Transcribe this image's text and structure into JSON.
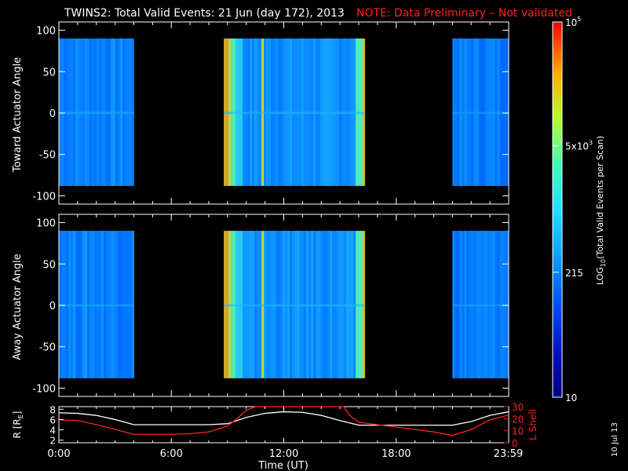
{
  "header": {
    "title": "TWINS2: Total Valid Events: 21 Jun (day 172), 2013",
    "note": "NOTE: Data Preliminary – Not validated"
  },
  "footer": {
    "date_stamp": "10 Jul 13"
  },
  "colors": {
    "background": "#000000",
    "note": "#ff2020",
    "foreground": "#ffffff",
    "lshell": "#ff2020",
    "radius": "#ffffff"
  },
  "chart_data": [
    {
      "type": "heatmap",
      "ylabel": "Toward Actuator Angle",
      "x_unit": "hours UT",
      "xlim": [
        0,
        24
      ],
      "ylim": [
        -110,
        110
      ],
      "yticks": [
        "100",
        "50",
        "0",
        "-50",
        "-100"
      ],
      "data_y_range": [
        -88,
        90
      ],
      "data_segments": [
        {
          "start": 0.0,
          "end": 4.0,
          "level": 0.28
        },
        {
          "start": 8.8,
          "end": 16.3,
          "level": 0.3
        },
        {
          "start": 21.0,
          "end": 24.0,
          "level": 0.27
        }
      ],
      "colorscale": [
        "#000080",
        "#0020e0",
        "#0070ff",
        "#20c0ff",
        "#40ffd0",
        "#90ff60",
        "#ffe000",
        "#ff8000",
        "#ff1000"
      ]
    },
    {
      "type": "heatmap",
      "ylabel": "Away Actuator Angle",
      "x_unit": "hours UT",
      "xlim": [
        0,
        24
      ],
      "ylim": [
        -110,
        110
      ],
      "yticks": [
        "100",
        "50",
        "0",
        "-50",
        "-100"
      ],
      "data_y_range": [
        -88,
        90
      ],
      "data_segments": [
        {
          "start": 0.0,
          "end": 4.0,
          "level": 0.28
        },
        {
          "start": 8.8,
          "end": 16.3,
          "level": 0.3
        },
        {
          "start": 21.0,
          "end": 24.0,
          "level": 0.27
        }
      ],
      "colorscale": [
        "#000080",
        "#0020e0",
        "#0070ff",
        "#20c0ff",
        "#40ffd0",
        "#90ff60",
        "#ffe000",
        "#ff8000",
        "#ff1000"
      ]
    },
    {
      "type": "line",
      "xlabel": "Time (UT)",
      "xtick_labels": [
        "0:00",
        "6:00",
        "12:00",
        "18:00",
        "23:59"
      ],
      "xtick_hours": [
        0,
        6,
        12,
        18,
        23.98
      ],
      "ylabel_left": "R [R",
      "ylabel_left_sub": "E",
      "ylabel_left_close": "]",
      "ylim_left": [
        1.5,
        8.5
      ],
      "yticks_left": [
        "8",
        "6",
        "4",
        "2"
      ],
      "ylabel_right": "L Shell",
      "ylim_right": [
        0,
        30
      ],
      "yticks_right": [
        "30",
        "20",
        "10",
        "0"
      ],
      "series": [
        {
          "x": [
            0,
            1,
            2,
            3,
            4,
            5,
            6,
            7,
            8,
            9,
            10,
            11,
            12,
            13,
            14,
            15,
            16,
            17,
            18,
            19,
            20,
            21,
            22,
            23,
            24
          ],
          "y": [
            7.3,
            7.2,
            6.8,
            6.0,
            5.0,
            5.0,
            5.0,
            5.0,
            5.0,
            5.2,
            6.4,
            7.2,
            7.5,
            7.4,
            6.8,
            5.8,
            4.9,
            4.9,
            4.9,
            4.9,
            4.9,
            4.9,
            5.6,
            6.8,
            7.5
          ]
        },
        {
          "x": [
            0,
            1,
            2,
            3,
            4,
            5,
            6,
            7,
            8,
            9,
            9.5,
            10,
            10.5,
            15.2,
            15.5,
            16,
            17,
            18,
            19,
            20,
            21,
            22,
            23,
            24
          ],
          "y": [
            19,
            18.5,
            15,
            11,
            7,
            7,
            7,
            7.5,
            9,
            14,
            20,
            27,
            32,
            32,
            23,
            17,
            15,
            13,
            11,
            9,
            6,
            11,
            19,
            23
          ]
        }
      ]
    }
  ],
  "colorbar": {
    "tick_values": [
      "10",
      "215",
      "5x10",
      "10"
    ],
    "tick_sup": [
      "",
      "",
      "3",
      "5"
    ],
    "label_pre": "LOG",
    "label_sub": "10",
    "label_post": "(Total Valid Events per Scan)"
  }
}
